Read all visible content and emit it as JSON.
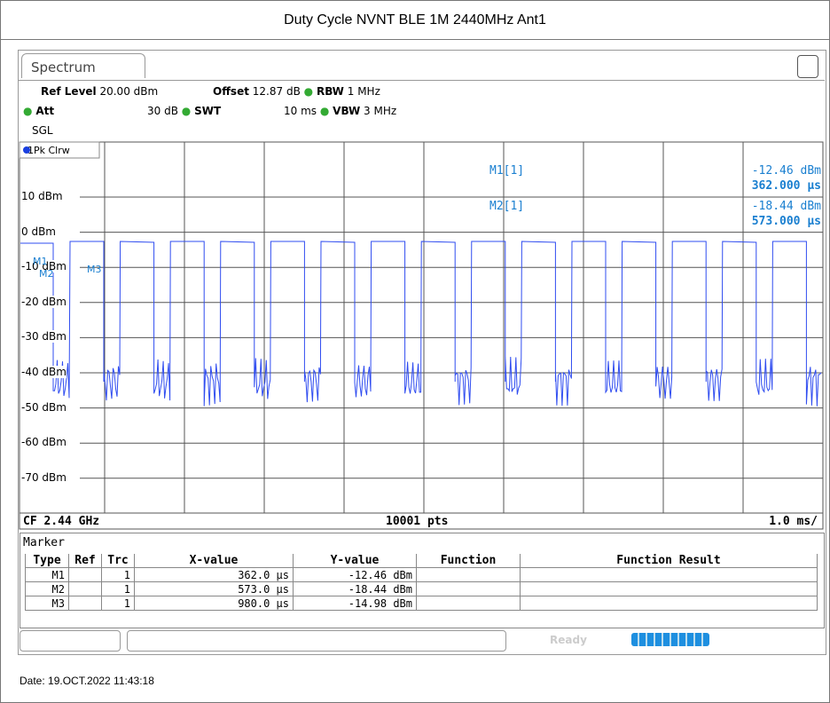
{
  "header": {
    "title": "Duty Cycle NVNT BLE 1M 2440MHz Ant1"
  },
  "tab": "Spectrum",
  "settings": {
    "ref_level_label": "Ref Level",
    "ref_level": "20.00 dBm",
    "offset_label": "Offset",
    "offset": "12.87 dB",
    "rbw_label": "RBW",
    "rbw": "1 MHz",
    "att_label": "Att",
    "att": "30 dB",
    "swt_label": "SWT",
    "swt": "10 ms",
    "vbw_label": "VBW",
    "vbw": "3 MHz",
    "mode": "SGL"
  },
  "trace_label": "1Pk Clrw",
  "y_axis": [
    "10 dBm",
    "0 dBm",
    "-10 dBm",
    "-20 dBm",
    "-30 dBm",
    "-40 dBm",
    "-50 dBm",
    "-60 dBm",
    "-70 dBm"
  ],
  "marker_readout": [
    {
      "name": "M1[1]",
      "y": "-12.46 dBm",
      "x": "362.000 µs"
    },
    {
      "name": "M2[1]",
      "y": "-18.44 dBm",
      "x": "573.000 µs"
    }
  ],
  "marker_tags": [
    "M1",
    "M2",
    "M3"
  ],
  "footer": {
    "cf": "CF 2.44 GHz",
    "pts": "10001 pts",
    "span": "1.0 ms/"
  },
  "marker_table": {
    "title": "Marker",
    "columns": [
      "Type",
      "Ref",
      "Trc",
      "X-value",
      "Y-value",
      "Function",
      "Function Result"
    ],
    "rows": [
      {
        "type": "M1",
        "trc": "1",
        "x": "362.0 µs",
        "y": "-12.46 dBm"
      },
      {
        "type": "M2",
        "trc": "1",
        "x": "573.0 µs",
        "y": "-18.44 dBm"
      },
      {
        "type": "M3",
        "trc": "1",
        "x": "980.0 µs",
        "y": "-14.98 dBm"
      }
    ]
  },
  "status": "Ready",
  "date": "Date: 19.OCT.2022  11:43:18"
}
